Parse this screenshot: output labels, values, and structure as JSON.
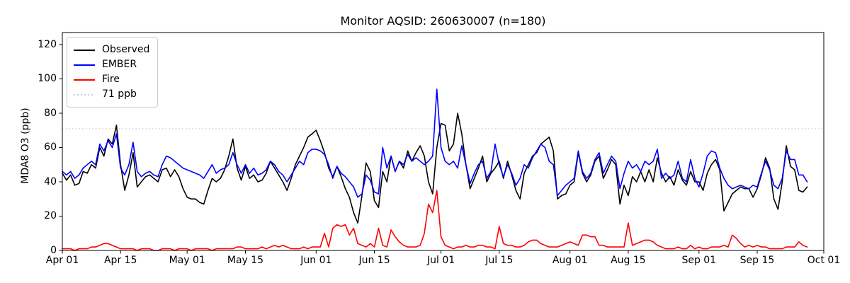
{
  "chart_data": {
    "type": "line",
    "title": "Monitor AQSID: 260630007 (n=180)",
    "monitor_aqsid": "260630007",
    "n_points": 180,
    "ylabel": "MDA8 O3 (ppb)",
    "xlabel": "",
    "ylim": [
      0,
      127
    ],
    "grid": false,
    "legend_position": "upper left",
    "yticks": [
      0,
      20,
      40,
      60,
      80,
      100,
      120
    ],
    "xtick_labels": [
      "Apr 01",
      "Apr 15",
      "May 01",
      "May 15",
      "Jun 01",
      "Jun 15",
      "Jul 01",
      "Jul 15",
      "Aug 01",
      "Aug 15",
      "Sep 01",
      "Sep 15",
      "Oct 01"
    ],
    "xtick_days": [
      0,
      14,
      30,
      44,
      61,
      75,
      91,
      105,
      122,
      136,
      153,
      167,
      183
    ],
    "x_days_total": 183,
    "x_start": "Apr 01",
    "x_end_data": "Sep 27",
    "reference_line": {
      "label": "71 ppb",
      "value": 71,
      "color": "#d0d0d0",
      "style": "dotted"
    },
    "series": [
      {
        "name": "Observed",
        "color": "#000000",
        "values": [
          45,
          41,
          44,
          38,
          39,
          46,
          45,
          50,
          48,
          60,
          55,
          65,
          62,
          73,
          50,
          35,
          44,
          57,
          37,
          40,
          43,
          44,
          42,
          40,
          47,
          48,
          43,
          47,
          43,
          36,
          31,
          30,
          30,
          28,
          27,
          35,
          42,
          40,
          42,
          47,
          55,
          65,
          48,
          41,
          49,
          42,
          44,
          40,
          41,
          45,
          52,
          48,
          44,
          40,
          35,
          42,
          50,
          55,
          60,
          66,
          68,
          70,
          64,
          57,
          48,
          43,
          49,
          43,
          36,
          31,
          22,
          16,
          32,
          51,
          46,
          29,
          25,
          46,
          40,
          55,
          46,
          52,
          48,
          58,
          52,
          57,
          61,
          55,
          40,
          33,
          60,
          74,
          73,
          58,
          62,
          80,
          68,
          50,
          36,
          42,
          48,
          55,
          40,
          45,
          48,
          52,
          42,
          52,
          44,
          35,
          30,
          45,
          50,
          55,
          57,
          62,
          64,
          66,
          58,
          30,
          32,
          33,
          38,
          40,
          57,
          45,
          40,
          44,
          52,
          55,
          42,
          47,
          53,
          50,
          27,
          38,
          32,
          43,
          40,
          46,
          40,
          47,
          40,
          54,
          45,
          40,
          43,
          38,
          47,
          41,
          38,
          46,
          40,
          40,
          35,
          45,
          50,
          53,
          47,
          23,
          28,
          33,
          35,
          37,
          36,
          36,
          31,
          36,
          44,
          54,
          48,
          30,
          24,
          40,
          61,
          49,
          47,
          35,
          34,
          37
        ]
      },
      {
        "name": "EMBER",
        "color": "#0000ff",
        "values": [
          46,
          44,
          46,
          42,
          44,
          48,
          50,
          52,
          50,
          62,
          58,
          64,
          60,
          68,
          48,
          44,
          50,
          63,
          46,
          43,
          45,
          46,
          44,
          43,
          50,
          55,
          54,
          52,
          50,
          48,
          47,
          46,
          45,
          44,
          42,
          46,
          50,
          45,
          47,
          48,
          50,
          57,
          50,
          45,
          50,
          45,
          48,
          44,
          45,
          47,
          52,
          50,
          46,
          44,
          40,
          44,
          48,
          52,
          50,
          57,
          59,
          59,
          58,
          56,
          50,
          42,
          49,
          45,
          43,
          40,
          37,
          31,
          33,
          44,
          41,
          34,
          33,
          60,
          48,
          55,
          46,
          52,
          50,
          56,
          52,
          54,
          52,
          50,
          52,
          55,
          94,
          60,
          52,
          50,
          52,
          48,
          61,
          50,
          39,
          45,
          50,
          52,
          42,
          46,
          62,
          50,
          43,
          50,
          45,
          38,
          42,
          50,
          48,
          54,
          58,
          62,
          60,
          52,
          50,
          32,
          35,
          38,
          40,
          42,
          58,
          46,
          42,
          45,
          53,
          57,
          45,
          50,
          55,
          52,
          36,
          45,
          52,
          48,
          50,
          46,
          52,
          50,
          52,
          59,
          42,
          45,
          42,
          44,
          52,
          42,
          40,
          53,
          42,
          37,
          45,
          55,
          58,
          57,
          48,
          42,
          38,
          36,
          37,
          38,
          37,
          36,
          38,
          37,
          45,
          52,
          47,
          38,
          36,
          42,
          58,
          53,
          53,
          44,
          44,
          40
        ]
      },
      {
        "name": "Fire",
        "color": "#ff0000",
        "values": [
          1,
          1,
          1,
          0,
          1,
          1,
          1,
          2,
          2,
          3,
          4,
          4,
          3,
          2,
          1,
          1,
          1,
          1,
          0,
          1,
          1,
          1,
          0,
          0,
          1,
          1,
          1,
          0,
          1,
          1,
          1,
          0,
          1,
          1,
          1,
          1,
          0,
          1,
          1,
          1,
          1,
          1,
          2,
          2,
          1,
          1,
          1,
          1,
          2,
          1,
          2,
          3,
          2,
          3,
          2,
          1,
          1,
          1,
          2,
          1,
          2,
          2,
          2,
          10,
          2,
          13,
          15,
          14,
          15,
          9,
          13,
          4,
          3,
          2,
          4,
          2,
          13,
          3,
          2,
          12,
          8,
          5,
          3,
          2,
          2,
          2,
          3,
          10,
          27,
          22,
          35,
          8,
          3,
          2,
          1,
          2,
          2,
          3,
          2,
          2,
          3,
          3,
          2,
          2,
          1,
          14,
          4,
          3,
          3,
          2,
          2,
          3,
          5,
          6,
          6,
          4,
          3,
          2,
          2,
          2,
          3,
          4,
          5,
          4,
          3,
          9,
          9,
          8,
          8,
          3,
          3,
          2,
          2,
          2,
          2,
          2,
          16,
          3,
          4,
          5,
          6,
          6,
          5,
          3,
          2,
          1,
          1,
          1,
          2,
          1,
          1,
          3,
          1,
          2,
          1,
          1,
          2,
          2,
          2,
          3,
          2,
          9,
          7,
          4,
          2,
          3,
          2,
          3,
          2,
          2,
          1,
          1,
          1,
          1,
          2,
          2,
          2,
          5,
          3,
          2
        ]
      }
    ]
  },
  "layout_colors": {
    "background": "#ffffff",
    "axes_border": "#000000",
    "tick_text": "#000000",
    "legend_border": "#cccccc"
  }
}
